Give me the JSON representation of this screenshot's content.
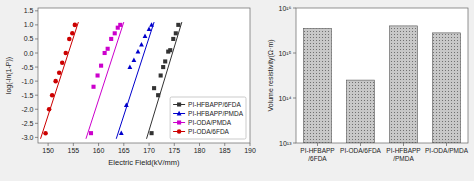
{
  "chart_data": [
    {
      "type": "scatter",
      "xlabel": "Electric Field(kV/mm)",
      "ylabel": "log(-ln(1-P))",
      "xlim": [
        148,
        190
      ],
      "ylim": [
        -3.2,
        1.6
      ],
      "xticks": [
        150,
        155,
        160,
        165,
        170,
        175,
        180,
        185,
        190
      ],
      "yticks": [
        {
          "value": -3.0,
          "label": "-3.0"
        },
        -2.5,
        {
          "value": -2.0,
          "label": "-2.0"
        },
        -1.5,
        {
          "value": -1.0,
          "label": "-1.0"
        },
        -0.5,
        {
          "value": 0.0,
          "label": "0.0"
        },
        0.5,
        {
          "value": 1.0,
          "label": "1.0"
        },
        1.5
      ],
      "grid": false,
      "legend": "lower right",
      "series": [
        {
          "name": "PI-HFBAPP/6FDA",
          "color": "#333333",
          "marker": "square",
          "x": [
            170.5,
            171.0,
            171.8,
            172.3,
            172.8,
            173.2,
            173.8,
            174.2,
            174.8,
            175.3,
            175.8
          ],
          "values": [
            -2.85,
            -1.25,
            -1.5,
            -0.8,
            -0.5,
            -0.3,
            0.05,
            0.1,
            0.5,
            0.7,
            1.0
          ],
          "fit_x": [
            169.5,
            176.5
          ],
          "fit_values": [
            -3.05,
            1.1
          ]
        },
        {
          "name": "PI-HFBAPP/PMDA",
          "color": "#0000cc",
          "marker": "triangle",
          "x": [
            164.5,
            165.5,
            166.2,
            167.0,
            167.8,
            168.5,
            169.2,
            170.0,
            170.5
          ],
          "values": [
            -2.85,
            -1.85,
            -0.5,
            -0.25,
            0.05,
            0.3,
            0.6,
            0.85,
            1.0
          ],
          "fit_x": [
            163.5,
            171.0
          ],
          "fit_values": [
            -3.05,
            1.1
          ]
        },
        {
          "name": "PI-ODA/PMDA",
          "color": "#cc00cc",
          "marker": "square",
          "x": [
            158.5,
            159.0,
            159.8,
            160.5,
            161.2,
            161.8,
            162.5,
            163.2,
            163.8,
            164.3
          ],
          "values": [
            -2.85,
            -1.2,
            -0.8,
            -0.45,
            0.0,
            0.15,
            0.5,
            0.7,
            0.9,
            1.0
          ],
          "fit_x": [
            157.5,
            165.0
          ],
          "fit_values": [
            -3.05,
            1.1
          ]
        },
        {
          "name": "PI-ODA/6FDA",
          "color": "#cc0000",
          "marker": "circle",
          "x": [
            149.5,
            150.2,
            150.8,
            151.5,
            152.2,
            152.8,
            153.5,
            154.2,
            154.8,
            155.3
          ],
          "values": [
            -2.85,
            -2.0,
            -1.5,
            -1.0,
            -0.7,
            -0.35,
            0.0,
            0.5,
            0.7,
            1.0
          ],
          "fit_x": [
            148.5,
            156.0
          ],
          "fit_values": [
            -3.05,
            1.1
          ]
        }
      ]
    },
    {
      "type": "bar",
      "ylabel": "Volume resistivity(Ω·m)",
      "categories": [
        "PI-HFBAPP\n/6FDA",
        "PI-ODA/6FDA",
        "PI-HFBAPP\n/PMDA",
        "PI-ODA/PMDA"
      ],
      "values": [
        3500000000000000.0,
        250000000000000.0,
        4000000000000000.0,
        2800000000000000.0
      ],
      "color": "#c8c8c8",
      "log": "y",
      "ylim": [
        10000000000000.0,
        1e+16
      ],
      "yticks": [
        {
          "value": 10000000000000.0,
          "label": "10¹³"
        },
        {
          "value": 100000000000000.0,
          "label": "10¹⁴"
        },
        {
          "value": 1000000000000000.0,
          "label": "10¹⁵"
        },
        {
          "value": 1e+16,
          "label": "10¹⁶"
        }
      ],
      "grid": false
    }
  ]
}
